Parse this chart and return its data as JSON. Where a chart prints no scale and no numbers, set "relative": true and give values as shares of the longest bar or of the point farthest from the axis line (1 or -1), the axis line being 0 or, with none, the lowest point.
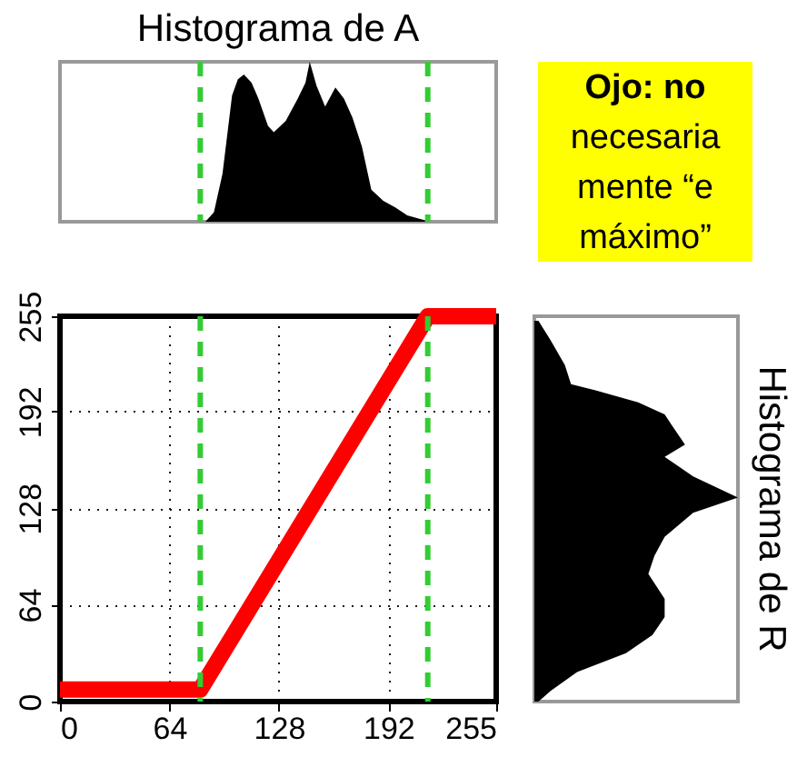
{
  "chart_data": [
    {
      "type": "area",
      "title": "Histograma de A",
      "relative": true,
      "xlim": [
        0,
        255
      ],
      "tick_labels": false,
      "series": [
        {
          "color": "#000000",
          "x": [
            85,
            90,
            95,
            100.6,
            104,
            107.5,
            112,
            116,
            121.6,
            125,
            132,
            139,
            143.5,
            146,
            150,
            155,
            161,
            166,
            171,
            176.5,
            182,
            189,
            196,
            203,
            213,
            215
          ],
          "values": [
            0,
            0.06,
            0.3,
            0.79,
            0.89,
            0.92,
            0.87,
            0.77,
            0.6,
            0.56,
            0.63,
            0.77,
            0.87,
            1.0,
            0.85,
            0.72,
            0.84,
            0.77,
            0.65,
            0.47,
            0.2,
            0.13,
            0.09,
            0.04,
            0.01,
            0
          ]
        }
      ],
      "ref_lines": [
        {
          "axis": "x",
          "value": 82,
          "color": "#33cc33",
          "line_style": "dashed"
        },
        {
          "axis": "x",
          "value": 215,
          "color": "#33cc33",
          "line_style": "dashed"
        }
      ]
    },
    {
      "type": "other",
      "color": "#ffff00",
      "annotations": [
        "Ojo: no",
        "necesaria",
        "mente “e",
        "máximo”"
      ]
    },
    {
      "type": "line",
      "xlim": [
        0,
        255
      ],
      "ylim": [
        0,
        255
      ],
      "xticks": [
        0,
        64,
        128,
        192,
        255
      ],
      "yticks": [
        0,
        64,
        128,
        192,
        255
      ],
      "grid": true,
      "line_style": "solid",
      "series": [
        {
          "color": "#ff0000",
          "x": [
            0,
            82,
            215,
            255
          ],
          "values": [
            8,
            8,
            255,
            255
          ]
        }
      ],
      "ref_lines": [
        {
          "axis": "x",
          "value": 82,
          "color": "#33cc33",
          "line_style": "dashed"
        },
        {
          "axis": "x",
          "value": 215,
          "color": "#33cc33",
          "line_style": "dashed"
        }
      ]
    },
    {
      "type": "area",
      "title": "Histograma de R",
      "relative": true,
      "orientation": "horizontal",
      "ylim": [
        0,
        255
      ],
      "tick_labels": false,
      "series": [
        {
          "color": "#000000",
          "x": [
            252,
            239,
            222.6,
            210,
            206,
            198,
            190,
            182,
            170,
            162,
            149,
            135,
            125,
            109,
            96.6,
            84.5,
            68,
            56,
            44,
            32,
            19.5,
            7,
            0
          ],
          "values": [
            0.02,
            0.08,
            0.15,
            0.18,
            0.3,
            0.51,
            0.64,
            0.68,
            0.74,
            0.64,
            0.78,
            1.0,
            0.78,
            0.64,
            0.59,
            0.56,
            0.64,
            0.64,
            0.58,
            0.45,
            0.21,
            0.08,
            0.02
          ]
        }
      ]
    }
  ]
}
